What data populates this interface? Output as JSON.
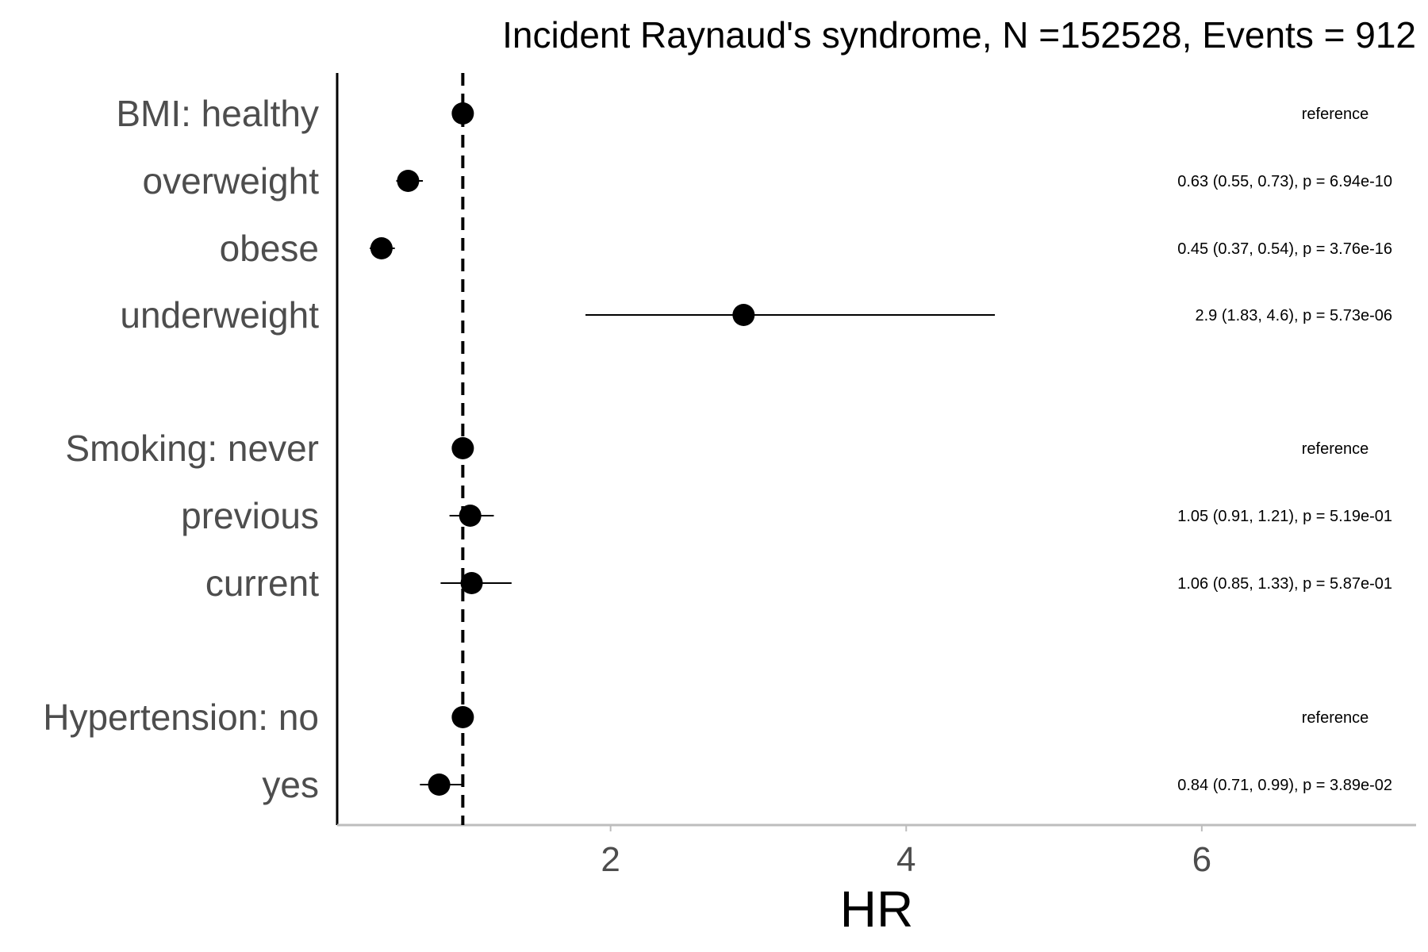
{
  "chart_data": {
    "type": "forest",
    "title": "Incident Raynaud's syndrome, N =152528, Events = 912",
    "xlabel": "HR",
    "ylabel": "",
    "xticks": [
      2,
      4,
      6
    ],
    "xlim": [
      0.15,
      7.45
    ],
    "reference_line": 1,
    "grid": false,
    "rows": [
      {
        "label": "BMI: healthy",
        "hr": 1,
        "lower": 1,
        "upper": 1,
        "annotation": "reference"
      },
      {
        "label": "overweight",
        "hr": 0.63,
        "lower": 0.55,
        "upper": 0.73,
        "annotation": "0.63 (0.55, 0.73), p = 6.94e-10"
      },
      {
        "label": "obese",
        "hr": 0.45,
        "lower": 0.37,
        "upper": 0.54,
        "annotation": "0.45 (0.37, 0.54), p = 3.76e-16"
      },
      {
        "label": "underweight",
        "hr": 2.9,
        "lower": 1.83,
        "upper": 4.6,
        "annotation": "2.9 (1.83, 4.6), p = 5.73e-06"
      },
      {
        "label": "Smoking: never",
        "hr": 1,
        "lower": 1,
        "upper": 1,
        "annotation": "reference"
      },
      {
        "label": "previous",
        "hr": 1.05,
        "lower": 0.91,
        "upper": 1.21,
        "annotation": "1.05 (0.91, 1.21), p = 5.19e-01"
      },
      {
        "label": "current",
        "hr": 1.06,
        "lower": 0.85,
        "upper": 1.33,
        "annotation": "1.06 (0.85, 1.33), p = 5.87e-01"
      },
      {
        "label": "Hypertension: no",
        "hr": 1,
        "lower": 1,
        "upper": 1,
        "annotation": "reference"
      },
      {
        "label": "yes",
        "hr": 0.84,
        "lower": 0.71,
        "upper": 0.99,
        "annotation": "0.84 (0.71, 0.99), p = 3.89e-02"
      }
    ]
  }
}
